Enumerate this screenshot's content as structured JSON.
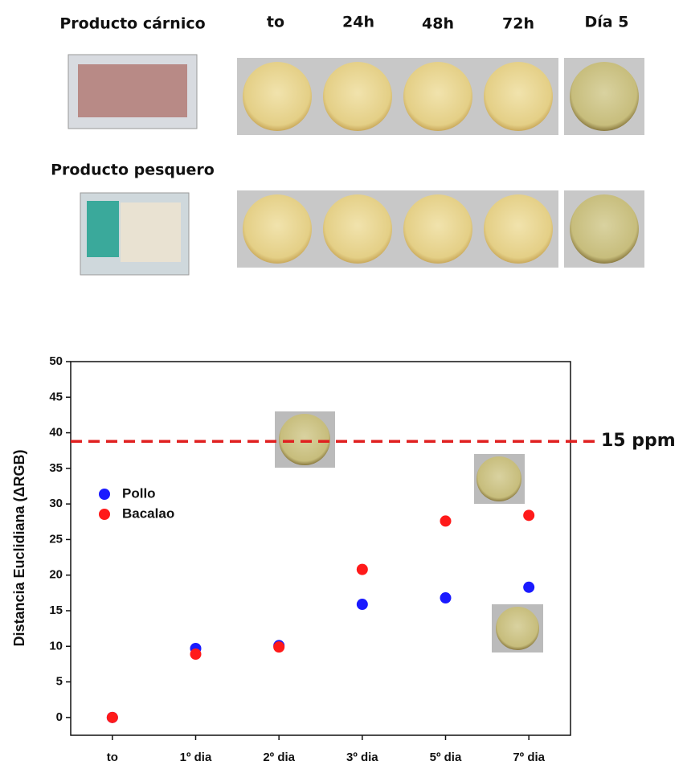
{
  "photo_panel": {
    "rows": [
      "Producto cárnico",
      "Producto pesquero"
    ],
    "columns": [
      "to",
      "24h",
      "48h",
      "72h",
      "Día 5"
    ]
  },
  "chart_data": {
    "type": "scatter",
    "y_label": "Distancia Euclidiana (ΔRGB)",
    "categories": [
      "to",
      "1º dia",
      "2º dia",
      "3º dia",
      "5º dia",
      "7º dia"
    ],
    "series": [
      {
        "name": "Pollo",
        "color": "#1a1aff",
        "values": [
          0,
          9.7,
          10.1,
          15.9,
          16.8,
          18.3
        ]
      },
      {
        "name": "Bacalao",
        "color": "#ff1a1a",
        "values": [
          0,
          8.9,
          9.9,
          20.8,
          27.6,
          28.4
        ]
      }
    ],
    "ylim": [
      -2.5,
      50
    ],
    "yticks": [
      0,
      5,
      10,
      15,
      20,
      25,
      30,
      35,
      40,
      45,
      50
    ],
    "reference_line": {
      "value": 38.8,
      "label": "15 ppm",
      "color": "#e02020"
    },
    "legend": "upper left"
  }
}
